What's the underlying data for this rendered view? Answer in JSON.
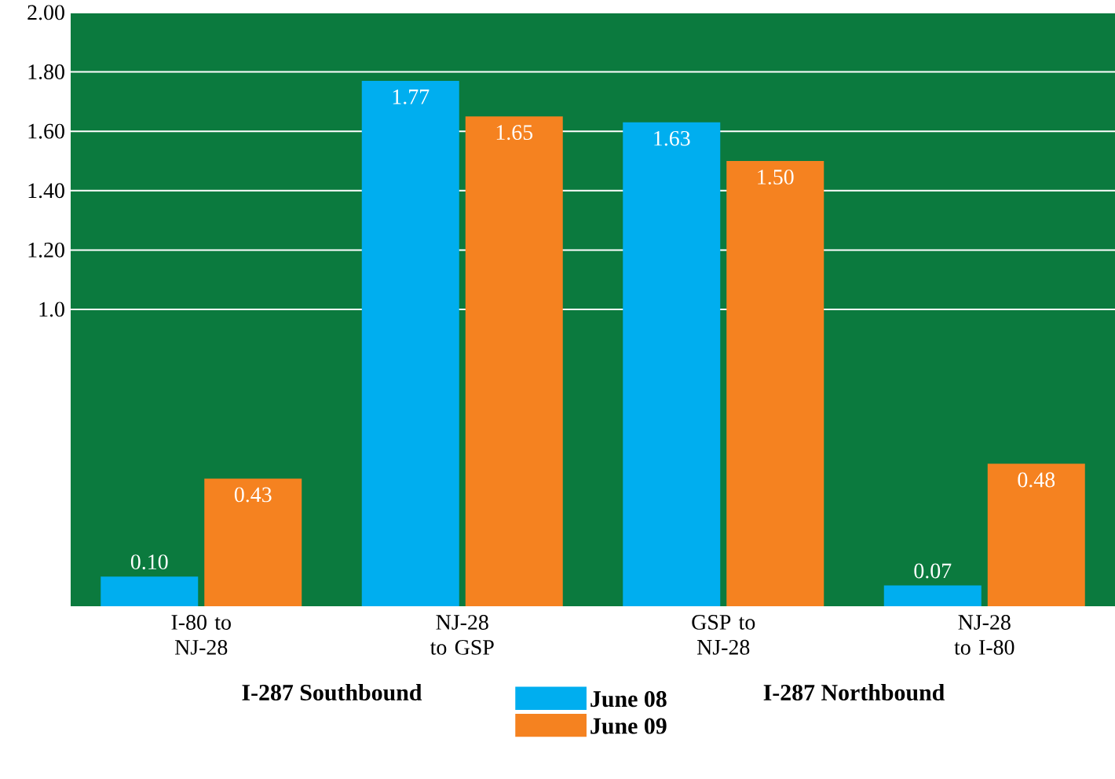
{
  "chart_data": {
    "type": "bar",
    "categories": [
      "I-80 to NJ-28",
      "NJ-28 to GSP",
      "GSP to NJ-28",
      "NJ-28 to I-80"
    ],
    "series": [
      {
        "name": "June 08",
        "color": "#00aeef",
        "values": [
          0.1,
          1.77,
          1.63,
          0.07
        ],
        "value_labels": [
          "0.10",
          "1.77",
          "1.63",
          "0.07"
        ]
      },
      {
        "name": "June 09",
        "color": "#f58220",
        "values": [
          0.43,
          1.65,
          1.5,
          0.48
        ],
        "value_labels": [
          "0.43",
          "1.65",
          "1.50",
          "0.48"
        ]
      }
    ],
    "ylim": [
      0,
      2.0
    ],
    "yticks": [
      {
        "value": 1.0,
        "label": "1.0"
      },
      {
        "value": 1.2,
        "label": "1.20"
      },
      {
        "value": 1.4,
        "label": "1.40"
      },
      {
        "value": 1.6,
        "label": "1.60"
      },
      {
        "value": 1.8,
        "label": "1.80"
      },
      {
        "value": 2.0,
        "label": "2.00"
      }
    ],
    "grid": "y",
    "legend": "bottom",
    "annotations": [
      "I-287 Southbound",
      "I-287 Northbound"
    ]
  }
}
